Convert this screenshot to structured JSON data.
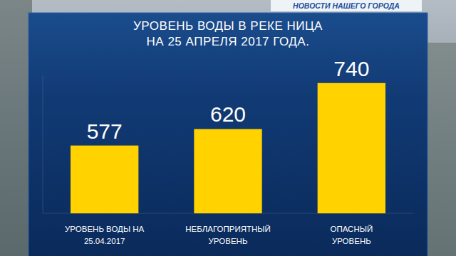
{
  "chart_data": {
    "type": "bar",
    "title": "УРОВЕНЬ ВОДЫ В РЕКЕ НИЦА НА 25 АПРЕЛЯ 2017 ГОДА.",
    "annotations": [
      "НОВОСТИ НАШЕГО ГОРОДА"
    ],
    "categories": [
      "УРОВЕНЬ ВОДЫ НА 25.04.2017",
      "НЕБЛАГОПРИЯТНЫЙ УРОВЕНЬ",
      "ОПАСНЫЙ УРОВЕНЬ"
    ],
    "values": [
      577,
      620,
      740
    ],
    "color": "#ffd200",
    "ylim": [
      400,
      760
    ],
    "data_labels": true,
    "tick_labels": false,
    "grid": false
  }
}
